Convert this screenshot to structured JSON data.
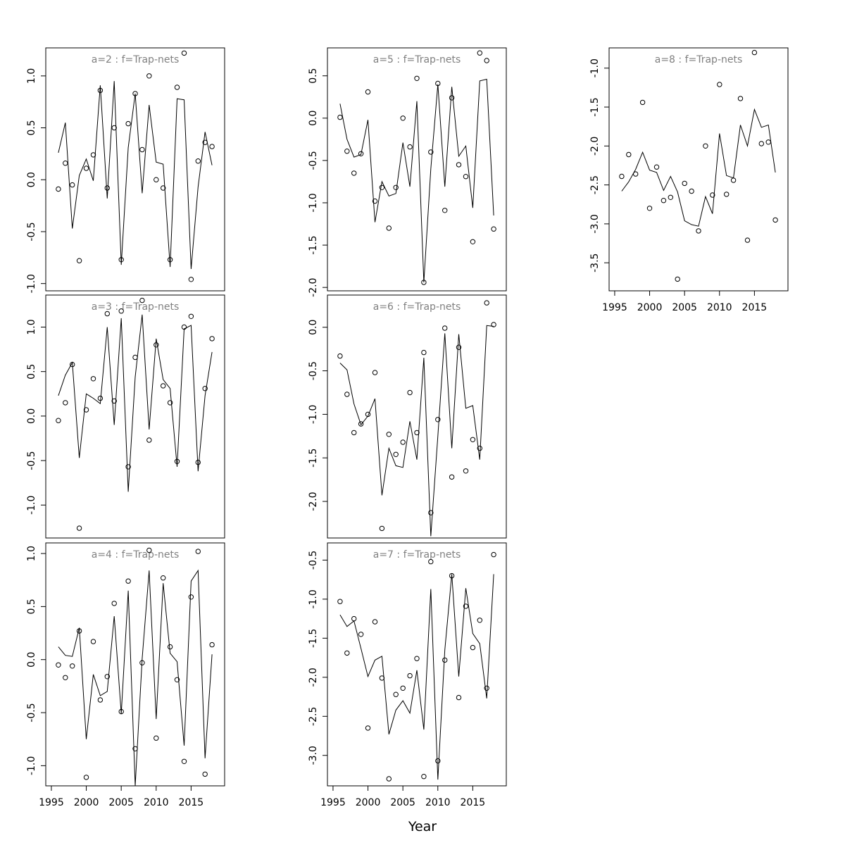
{
  "figure": {
    "xlabel": "Year"
  },
  "chart_data": [
    {
      "type": "scatter",
      "title": "a=2  :  f=Trap-nets",
      "xlim": [
        1994.2,
        2019.8
      ],
      "ylim": [
        -1.07,
        1.27
      ],
      "xticks": [],
      "yticks": [
        -1.0,
        -0.5,
        0.0,
        0.5,
        1.0
      ],
      "ytick_labels": [
        "-1.0",
        "-0.5",
        "0.0",
        "0.5",
        "1.0"
      ],
      "x": [
        1996,
        1997,
        1998,
        1999,
        2000,
        2001,
        2002,
        2003,
        2004,
        2005,
        2006,
        2007,
        2008,
        2009,
        2010,
        2011,
        2012,
        2013,
        2014,
        2015,
        2016,
        2017,
        2018
      ],
      "observed": [
        -0.09,
        0.16,
        -0.05,
        -0.78,
        0.11,
        0.24,
        0.86,
        -0.08,
        0.5,
        -0.77,
        0.54,
        0.83,
        0.29,
        1.0,
        0.0,
        -0.08,
        -0.77,
        0.89,
        1.22,
        -0.96,
        0.18,
        0.36,
        0.32
      ],
      "fitted": [
        0.26,
        0.55,
        -0.47,
        0.04,
        0.2,
        -0.01,
        0.91,
        -0.18,
        0.95,
        -0.82,
        0.31,
        0.83,
        -0.13,
        0.72,
        0.17,
        0.15,
        -0.84,
        0.78,
        0.77,
        -0.86,
        -0.07,
        0.46,
        0.14
      ]
    },
    {
      "type": "scatter",
      "title": "a=3  :  f=Trap-nets",
      "xlim": [
        1994.2,
        2019.8
      ],
      "ylim": [
        -1.37,
        1.36
      ],
      "xticks": [],
      "yticks": [
        -1.0,
        -0.5,
        0.0,
        0.5,
        1.0
      ],
      "ytick_labels": [
        "-1.0",
        "-0.5",
        "0.0",
        "0.5",
        "1.0"
      ],
      "x": [
        1996,
        1997,
        1998,
        1999,
        2000,
        2001,
        2002,
        2003,
        2004,
        2005,
        2006,
        2007,
        2008,
        2009,
        2010,
        2011,
        2012,
        2013,
        2014,
        2015,
        2016,
        2017,
        2018
      ],
      "observed": [
        -0.05,
        0.15,
        0.58,
        -1.26,
        0.07,
        0.42,
        0.2,
        1.15,
        0.17,
        1.18,
        -0.57,
        0.66,
        1.3,
        -0.27,
        0.8,
        0.34,
        0.15,
        -0.51,
        1.0,
        1.12,
        -0.52,
        0.31,
        0.87
      ],
      "fitted": [
        0.23,
        0.46,
        0.6,
        -0.47,
        0.25,
        0.2,
        0.14,
        1.0,
        -0.1,
        1.1,
        -0.85,
        0.44,
        1.14,
        -0.15,
        0.87,
        0.41,
        0.31,
        -0.57,
        0.98,
        1.02,
        -0.62,
        0.23,
        0.72
      ]
    },
    {
      "type": "scatter",
      "title": "a=4  :  f=Trap-nets",
      "xlim": [
        1994.2,
        2019.8
      ],
      "ylim": [
        -1.19,
        1.1
      ],
      "xticks": [
        1995,
        2000,
        2005,
        2010,
        2015
      ],
      "yticks": [
        -1.0,
        -0.5,
        0.0,
        0.5,
        1.0
      ],
      "ytick_labels": [
        "-1.0",
        "-0.5",
        "0.0",
        "0.5",
        "1.0"
      ],
      "x": [
        1996,
        1997,
        1998,
        1999,
        2000,
        2001,
        2002,
        2003,
        2004,
        2005,
        2006,
        2007,
        2008,
        2009,
        2010,
        2011,
        2012,
        2013,
        2014,
        2015,
        2016,
        2017,
        2018
      ],
      "observed": [
        -0.05,
        -0.17,
        -0.06,
        0.27,
        -1.11,
        0.17,
        -0.38,
        -0.16,
        0.53,
        -0.49,
        0.74,
        -0.84,
        -0.03,
        1.03,
        -0.74,
        0.77,
        0.12,
        -0.19,
        -0.96,
        0.59,
        1.02,
        -1.08,
        0.14
      ],
      "fitted": [
        0.12,
        0.04,
        0.03,
        0.3,
        -0.75,
        -0.14,
        -0.34,
        -0.3,
        0.41,
        -0.51,
        0.65,
        -1.19,
        0.01,
        0.84,
        -0.56,
        0.72,
        0.06,
        -0.02,
        -0.81,
        0.74,
        0.84,
        -0.93,
        0.05
      ]
    },
    {
      "type": "scatter",
      "title": "a=5  :  f=Trap-nets",
      "xlim": [
        1994.2,
        2019.8
      ],
      "ylim": [
        -2.04,
        0.83
      ],
      "xticks": [],
      "yticks": [
        -2.0,
        -1.5,
        -1.0,
        -0.5,
        0.0,
        0.5
      ],
      "ytick_labels": [
        "-2.0",
        "-1.5",
        "-1.0",
        "-0.5",
        "0.0",
        "0.5"
      ],
      "x": [
        1996,
        1997,
        1998,
        1999,
        2000,
        2001,
        2002,
        2003,
        2004,
        2005,
        2006,
        2007,
        2008,
        2009,
        2010,
        2011,
        2012,
        2013,
        2014,
        2015,
        2016,
        2017,
        2018
      ],
      "observed": [
        0.01,
        -0.39,
        -0.65,
        -0.42,
        0.31,
        -0.98,
        -0.82,
        -1.3,
        -0.82,
        0.0,
        -0.34,
        0.47,
        -1.94,
        -0.4,
        0.41,
        -1.09,
        0.24,
        -0.55,
        -0.69,
        -1.46,
        0.77,
        0.68,
        -1.31
      ],
      "fitted": [
        0.17,
        -0.25,
        -0.46,
        -0.43,
        -0.02,
        -1.23,
        -0.75,
        -0.92,
        -0.89,
        -0.29,
        -0.81,
        0.2,
        -1.94,
        -0.6,
        0.4,
        -0.81,
        0.37,
        -0.45,
        -0.33,
        -1.06,
        0.44,
        0.46,
        -1.15
      ]
    },
    {
      "type": "scatter",
      "title": "a=6  :  f=Trap-nets",
      "xlim": [
        1994.2,
        2019.8
      ],
      "ylim": [
        -2.42,
        0.37
      ],
      "xticks": [],
      "yticks": [
        -2.0,
        -1.5,
        -1.0,
        -0.5,
        0.0
      ],
      "ytick_labels": [
        "-2.0",
        "-1.5",
        "-1.0",
        "-0.5",
        "0.0"
      ],
      "x": [
        1996,
        1997,
        1998,
        1999,
        2000,
        2001,
        2002,
        2003,
        2004,
        2005,
        2006,
        2007,
        2008,
        2009,
        2010,
        2011,
        2012,
        2013,
        2014,
        2015,
        2016,
        2017,
        2018
      ],
      "observed": [
        -0.33,
        -0.77,
        -1.21,
        -1.11,
        -1.0,
        -0.52,
        -2.31,
        -1.23,
        -1.46,
        -1.32,
        -0.75,
        -1.21,
        -0.29,
        -2.13,
        -1.06,
        -0.01,
        -1.72,
        -0.23,
        -1.65,
        -1.29,
        -1.39,
        0.28,
        0.03
      ],
      "fitted": [
        -0.41,
        -0.49,
        -0.88,
        -1.12,
        -1.02,
        -0.82,
        -1.93,
        -1.39,
        -1.59,
        -1.61,
        -1.08,
        -1.52,
        -0.35,
        -2.4,
        -1.25,
        -0.07,
        -1.39,
        -0.08,
        -0.93,
        -0.9,
        -1.52,
        0.02,
        0.01
      ]
    },
    {
      "type": "scatter",
      "title": "a=7  :  f=Trap-nets",
      "xlim": [
        1994.2,
        2019.8
      ],
      "ylim": [
        -3.39,
        -0.28
      ],
      "xticks": [
        1995,
        2000,
        2005,
        2010,
        2015
      ],
      "yticks": [
        -3.0,
        -2.5,
        -2.0,
        -1.5,
        -1.0,
        -0.5
      ],
      "ytick_labels": [
        "-3.0",
        "-2.5",
        "-2.0",
        "-1.5",
        "-1.0",
        "-0.5"
      ],
      "x": [
        1996,
        1997,
        1998,
        1999,
        2000,
        2001,
        2002,
        2003,
        2004,
        2005,
        2006,
        2007,
        2008,
        2009,
        2010,
        2011,
        2012,
        2013,
        2014,
        2015,
        2016,
        2017,
        2018
      ],
      "observed": [
        -1.03,
        -1.69,
        -1.25,
        -1.45,
        -2.65,
        -1.29,
        -2.01,
        -3.3,
        -2.22,
        -2.14,
        -1.98,
        -1.76,
        -3.27,
        -0.52,
        -3.07,
        -1.78,
        -0.7,
        -2.26,
        -1.09,
        -1.62,
        -1.27,
        -2.14,
        -0.43
      ],
      "fitted": [
        -1.2,
        -1.35,
        -1.28,
        -1.63,
        -1.99,
        -1.78,
        -1.73,
        -2.73,
        -2.42,
        -2.3,
        -2.46,
        -1.91,
        -2.67,
        -0.87,
        -3.31,
        -1.65,
        -0.68,
        -1.99,
        -0.86,
        -1.44,
        -1.57,
        -2.27,
        -0.68
      ]
    },
    {
      "type": "scatter",
      "title": "a=8  :  f=Trap-nets",
      "xlim": [
        1994.2,
        2019.8
      ],
      "ylim": [
        -3.86,
        -0.74
      ],
      "xticks": [
        1995,
        2000,
        2005,
        2010,
        2015
      ],
      "yticks": [
        -3.5,
        -3.0,
        -2.5,
        -2.0,
        -1.5,
        -1.0
      ],
      "ytick_labels": [
        "-3.5",
        "-3.0",
        "-2.5",
        "-2.0",
        "-1.5",
        "-1.0"
      ],
      "x": [
        1996,
        1997,
        1998,
        1999,
        2000,
        2001,
        2002,
        2003,
        2004,
        2005,
        2006,
        2007,
        2008,
        2009,
        2010,
        2011,
        2012,
        2013,
        2014,
        2015,
        2016,
        2017,
        2018
      ],
      "observed": [
        -2.39,
        -2.11,
        -2.36,
        -1.44,
        -2.8,
        -2.27,
        -2.7,
        -2.66,
        -3.71,
        -2.48,
        -2.58,
        -3.09,
        -2.0,
        -2.63,
        -1.21,
        -2.62,
        -2.44,
        -1.39,
        -3.21,
        -0.8,
        -1.97,
        -1.95,
        -2.95
      ],
      "fitted": [
        -2.58,
        -2.46,
        -2.3,
        -2.08,
        -2.31,
        -2.34,
        -2.57,
        -2.39,
        -2.59,
        -2.96,
        -3.01,
        -3.03,
        -2.65,
        -2.87,
        -1.84,
        -2.38,
        -2.41,
        -1.73,
        -2.0,
        -1.53,
        -1.76,
        -1.73,
        -2.34
      ]
    }
  ],
  "panel_layout": [
    {
      "col": 0,
      "row": 0
    },
    {
      "col": 0,
      "row": 1
    },
    {
      "col": 0,
      "row": 2
    },
    {
      "col": 1,
      "row": 0
    },
    {
      "col": 1,
      "row": 1
    },
    {
      "col": 1,
      "row": 2
    },
    {
      "col": 2,
      "row": 0
    }
  ]
}
